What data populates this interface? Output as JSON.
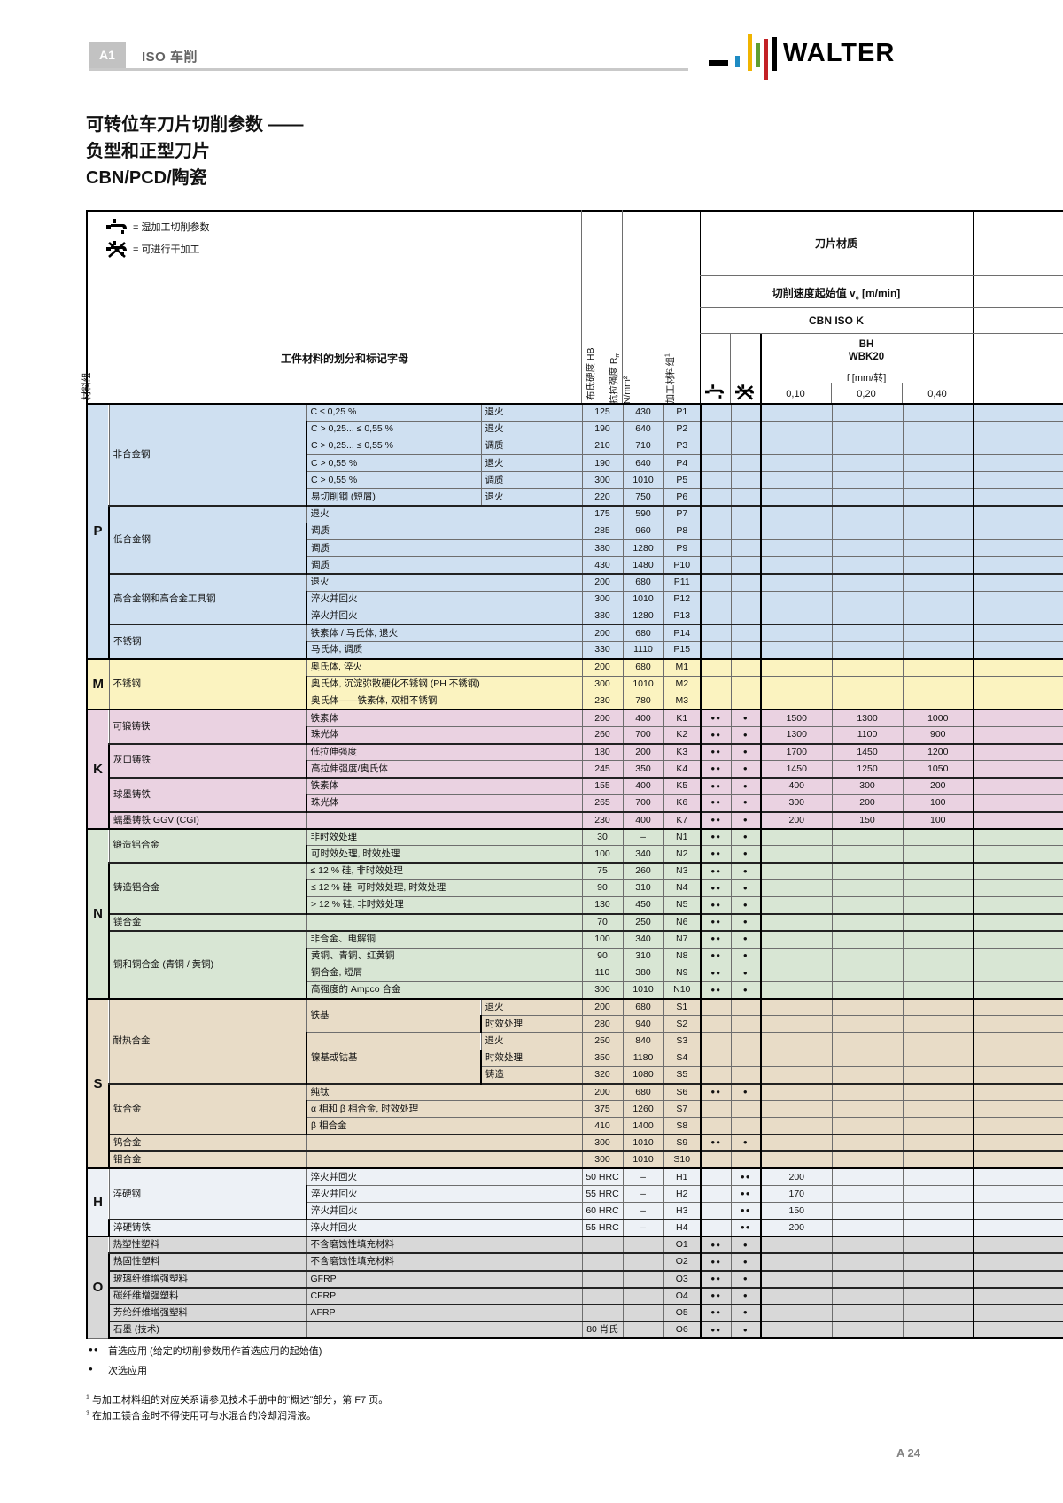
{
  "page": {
    "doc_code": "A1",
    "doc_title": "ISO 车削",
    "brand": "WALTER",
    "page_number": "A 24"
  },
  "title": {
    "line1": "可转位车刀片切削参数 ——",
    "line2": "负型和正型刀片",
    "line3": "CBN/PCD/陶瓷"
  },
  "legend": {
    "wet": "= 湿加工切削参数",
    "dry": "= 可进行干加工"
  },
  "header": {
    "material_group": "材料组",
    "workpiece": "工件材料的划分和标记字母",
    "hardness_label": "布氏硬度 HB",
    "tensile_label": "抗拉强度 R",
    "tensile_sub": "m",
    "tensile_unit": "N/mm²",
    "machining_group_label": "加工材料组",
    "machining_group_sup": "1",
    "insert_material": "刀片材质",
    "speed_prefix": "切削速度起始值 v",
    "speed_sub": "c",
    "speed_suffix": " [m/min]",
    "iso": "CBN ISO K",
    "grade_line1": "BH",
    "grade_line2": "WBK20",
    "feed_label": "f [mm/转]",
    "feeds": [
      "0,10",
      "0,20",
      "0,40"
    ]
  },
  "table": {
    "sections": [
      {
        "letter": "P",
        "color": "#cfe0f1",
        "groups": [
          {
            "name": "非合金钢",
            "rows": [
              {
                "s": "C ≤ 0,25 %",
                "t": "退火",
                "hb": "125",
                "rm": "430",
                "g": "P1"
              },
              {
                "s": "C > 0,25... ≤ 0,55 %",
                "t": "退火",
                "hb": "190",
                "rm": "640",
                "g": "P2"
              },
              {
                "s": "C > 0,25... ≤ 0,55 %",
                "t": "调质",
                "hb": "210",
                "rm": "710",
                "g": "P3"
              },
              {
                "s": "C > 0,55 %",
                "t": "退火",
                "hb": "190",
                "rm": "640",
                "g": "P4"
              },
              {
                "s": "C > 0,55 %",
                "t": "调质",
                "hb": "300",
                "rm": "1010",
                "g": "P5"
              },
              {
                "s": "易切削钢 (短屑)",
                "t": "退火",
                "hb": "220",
                "rm": "750",
                "g": "P6"
              }
            ]
          },
          {
            "name": "低合金钢",
            "rows": [
              {
                "s": "退火",
                "hb": "175",
                "rm": "590",
                "g": "P7"
              },
              {
                "s": "调质",
                "hb": "285",
                "rm": "960",
                "g": "P8"
              },
              {
                "s": "调质",
                "hb": "380",
                "rm": "1280",
                "g": "P9"
              },
              {
                "s": "调质",
                "hb": "430",
                "rm": "1480",
                "g": "P10"
              }
            ]
          },
          {
            "name": "高合金钢和高合金工具钢",
            "rows": [
              {
                "s": "退火",
                "hb": "200",
                "rm": "680",
                "g": "P11"
              },
              {
                "s": "淬火并回火",
                "hb": "300",
                "rm": "1010",
                "g": "P12"
              },
              {
                "s": "淬火并回火",
                "hb": "380",
                "rm": "1280",
                "g": "P13"
              }
            ]
          },
          {
            "name": "不锈钢",
            "rows": [
              {
                "s": "铁素体 / 马氏体, 退火",
                "hb": "200",
                "rm": "680",
                "g": "P14"
              },
              {
                "s": "马氏体, 调质",
                "hb": "330",
                "rm": "1110",
                "g": "P15"
              }
            ]
          }
        ]
      },
      {
        "letter": "M",
        "color": "#fbf3c0",
        "groups": [
          {
            "name": "不锈钢",
            "rows": [
              {
                "s": "奥氏体, 淬火",
                "hb": "200",
                "rm": "680",
                "g": "M1"
              },
              {
                "s": "奥氏体, 沉淀弥散硬化不锈钢 (PH 不锈钢)",
                "hb": "300",
                "rm": "1010",
                "g": "M2"
              },
              {
                "s": "奥氏体——铁素体, 双相不锈钢",
                "hb": "230",
                "rm": "780",
                "g": "M3"
              }
            ]
          }
        ]
      },
      {
        "letter": "K",
        "color": "#ead2e1",
        "groups": [
          {
            "name": "可锻铸铁",
            "rows": [
              {
                "s": "铁素体",
                "hb": "200",
                "rm": "400",
                "g": "K1",
                "w": "●●",
                "d": "●",
                "v1": "1500",
                "v2": "1300",
                "v3": "1000"
              },
              {
                "s": "珠光体",
                "hb": "260",
                "rm": "700",
                "g": "K2",
                "w": "●●",
                "d": "●",
                "v1": "1300",
                "v2": "1100",
                "v3": "900"
              }
            ]
          },
          {
            "name": "灰口铸铁",
            "rows": [
              {
                "s": "低拉伸强度",
                "hb": "180",
                "rm": "200",
                "g": "K3",
                "w": "●●",
                "d": "●",
                "v1": "1700",
                "v2": "1450",
                "v3": "1200"
              },
              {
                "s": "高拉伸强度/奥氏体",
                "hb": "245",
                "rm": "350",
                "g": "K4",
                "w": "●●",
                "d": "●",
                "v1": "1450",
                "v2": "1250",
                "v3": "1050"
              }
            ]
          },
          {
            "name": "球墨铸铁",
            "rows": [
              {
                "s": "铁素体",
                "hb": "155",
                "rm": "400",
                "g": "K5",
                "w": "●●",
                "d": "●",
                "v1": "400",
                "v2": "300",
                "v3": "200"
              },
              {
                "s": "珠光体",
                "hb": "265",
                "rm": "700",
                "g": "K6",
                "w": "●●",
                "d": "●",
                "v1": "300",
                "v2": "200",
                "v3": "100"
              }
            ]
          },
          {
            "name": "蠕墨铸铁 GGV (CGI)",
            "rows": [
              {
                "s": "",
                "hb": "230",
                "rm": "400",
                "g": "K7",
                "w": "●●",
                "d": "●",
                "v1": "200",
                "v2": "150",
                "v3": "100"
              }
            ]
          }
        ]
      },
      {
        "letter": "N",
        "color": "#d8e6d4",
        "groups": [
          {
            "name": "锻造铝合金",
            "rows": [
              {
                "s": "非时效处理",
                "hb": "30",
                "rm": "–",
                "g": "N1",
                "w": "●●",
                "d": "●"
              },
              {
                "s": "可时效处理, 时效处理",
                "hb": "100",
                "rm": "340",
                "g": "N2",
                "w": "●●",
                "d": "●"
              }
            ]
          },
          {
            "name": "铸造铝合金",
            "rows": [
              {
                "s": "≤ 12 % 硅, 非时效处理",
                "hb": "75",
                "rm": "260",
                "g": "N3",
                "w": "●●",
                "d": "●"
              },
              {
                "s": "≤ 12 % 硅, 可时效处理, 时效处理",
                "hb": "90",
                "rm": "310",
                "g": "N4",
                "w": "●●",
                "d": "●"
              },
              {
                "s": "> 12 % 硅, 非时效处理",
                "hb": "130",
                "rm": "450",
                "g": "N5",
                "w": "●●",
                "d": "●"
              }
            ]
          },
          {
            "name": "镁合金",
            "rows": [
              {
                "s": "",
                "hb": "70",
                "rm": "250",
                "g": "N6",
                "w": "●●",
                "d": "●"
              }
            ]
          },
          {
            "name": "铜和铜合金 (青铜 / 黄铜)",
            "rows": [
              {
                "s": "非合金、电解铜",
                "hb": "100",
                "rm": "340",
                "g": "N7",
                "w": "●●",
                "d": "●"
              },
              {
                "s": "黄铜、青铜、红黄铜",
                "hb": "90",
                "rm": "310",
                "g": "N8",
                "w": "●●",
                "d": "●"
              },
              {
                "s": "铜合金, 短屑",
                "hb": "110",
                "rm": "380",
                "g": "N9",
                "w": "●●",
                "d": "●"
              },
              {
                "s": "高强度的 Ampco 合金",
                "hb": "300",
                "rm": "1010",
                "g": "N10",
                "w": "●●",
                "d": "●"
              }
            ]
          }
        ]
      },
      {
        "letter": "S",
        "color": "#e8dcc7",
        "groups": [
          {
            "name": "耐热合金",
            "rows": [
              {
                "mid": {
                  "l": "铁基",
                  "sp": 2
                },
                "t": "退火",
                "hb": "200",
                "rm": "680",
                "g": "S1"
              },
              {
                "t": "时效处理",
                "hb": "280",
                "rm": "940",
                "g": "S2"
              },
              {
                "mid": {
                  "l": "镍基或钴基",
                  "sp": 3
                },
                "t": "退火",
                "hb": "250",
                "rm": "840",
                "g": "S3"
              },
              {
                "t": "时效处理",
                "hb": "350",
                "rm": "1180",
                "g": "S4"
              },
              {
                "t": "铸造",
                "hb": "320",
                "rm": "1080",
                "g": "S5"
              }
            ]
          },
          {
            "name": "钛合金",
            "rows": [
              {
                "s": "纯钛",
                "hb": "200",
                "rm": "680",
                "g": "S6",
                "w": "●●",
                "d": "●"
              },
              {
                "s": "α 相和 β 相合金, 时效处理",
                "hb": "375",
                "rm": "1260",
                "g": "S7"
              },
              {
                "s": "β 相合金",
                "hb": "410",
                "rm": "1400",
                "g": "S8"
              }
            ]
          },
          {
            "name": "钨合金",
            "rows": [
              {
                "s": "",
                "hb": "300",
                "rm": "1010",
                "g": "S9",
                "w": "●●",
                "d": "●"
              }
            ]
          },
          {
            "name": "钼合金",
            "rows": [
              {
                "s": "",
                "hb": "300",
                "rm": "1010",
                "g": "S10"
              }
            ]
          }
        ]
      },
      {
        "letter": "H",
        "color": "#edf1f6",
        "groups": [
          {
            "name": "淬硬钢",
            "rows": [
              {
                "s": "淬火并回火",
                "hb": "50 HRC",
                "rm": "–",
                "g": "H1",
                "d": "●●",
                "v1": "200"
              },
              {
                "s": "淬火并回火",
                "hb": "55 HRC",
                "rm": "–",
                "g": "H2",
                "d": "●●",
                "v1": "170"
              },
              {
                "s": "淬火并回火",
                "hb": "60 HRC",
                "rm": "–",
                "g": "H3",
                "d": "●●",
                "v1": "150"
              }
            ]
          },
          {
            "name": "淬硬铸铁",
            "rows": [
              {
                "s": "淬火并回火",
                "hb": "55 HRC",
                "rm": "–",
                "g": "H4",
                "d": "●●",
                "v1": "200"
              }
            ]
          }
        ]
      },
      {
        "letter": "O",
        "color": "#d8d8d8",
        "groups": [
          {
            "name": "热塑性塑料",
            "rows": [
              {
                "s": "不含磨蚀性填充材料",
                "g": "O1",
                "w": "●●",
                "d": "●"
              }
            ]
          },
          {
            "name": "热固性塑料",
            "rows": [
              {
                "s": "不含磨蚀性填充材料",
                "g": "O2",
                "w": "●●",
                "d": "●"
              }
            ]
          },
          {
            "name": "玻璃纤维增强塑料",
            "rows": [
              {
                "s": "GFRP",
                "g": "O3",
                "w": "●●",
                "d": "●"
              }
            ]
          },
          {
            "name": "碳纤维增强塑料",
            "rows": [
              {
                "s": "CFRP",
                "g": "O4",
                "w": "●●",
                "d": "●"
              }
            ]
          },
          {
            "name": "芳纶纤维增强塑料",
            "rows": [
              {
                "s": "AFRP",
                "g": "O5",
                "w": "●●",
                "d": "●"
              }
            ]
          },
          {
            "name": "石墨 (技术)",
            "rows": [
              {
                "s": "",
                "hb": "80 肖氏",
                "g": "O6",
                "w": "●●",
                "d": "●"
              }
            ]
          }
        ]
      }
    ]
  },
  "footnotes": {
    "pref_marker": "●●",
    "pref_text": "首选应用 (给定的切削参数用作首选应用的起始值)",
    "alt_marker": "●",
    "alt_text": "次选应用",
    "fn1_marker": "1",
    "fn1_text": "与加工材料组的对应关系请参见技术手册中的“概述”部分，第 F7 页。",
    "fn3_marker": "3",
    "fn3_text": "在加工镁合金时不得使用可与水混合的冷却润滑液。"
  }
}
